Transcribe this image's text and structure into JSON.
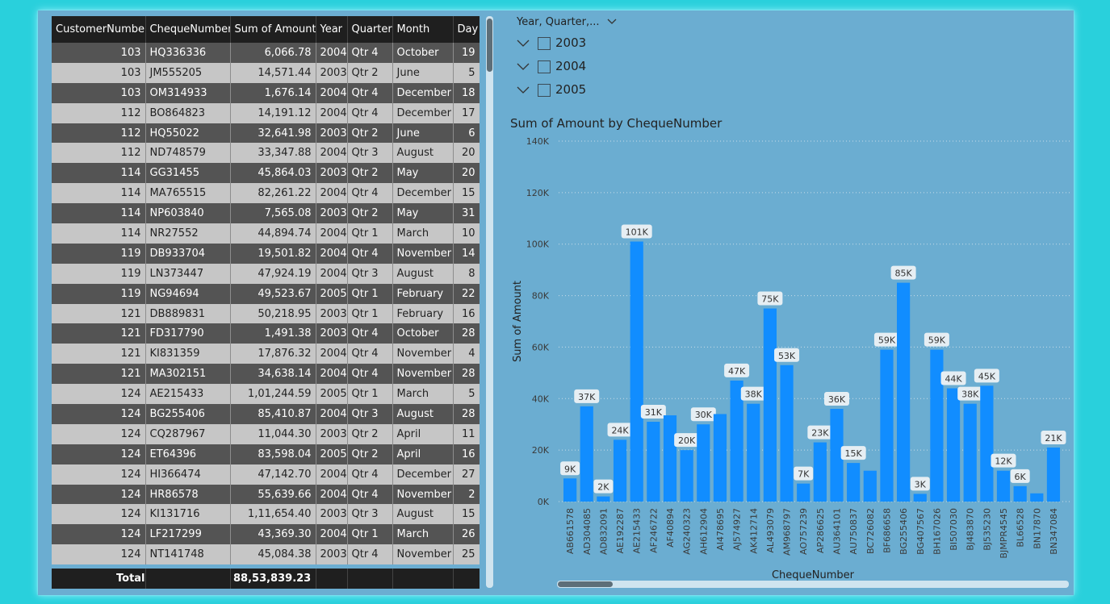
{
  "table": {
    "columns": [
      "CustomerNumber",
      "ChequeNumber",
      "Sum of Amount",
      "Year",
      "Quarter",
      "Month",
      "Day"
    ],
    "rows": [
      [
        "103",
        "HQ336336",
        "6,066.78",
        "2004",
        "Qtr 4",
        "October",
        "19"
      ],
      [
        "103",
        "JM555205",
        "14,571.44",
        "2003",
        "Qtr 2",
        "June",
        "5"
      ],
      [
        "103",
        "OM314933",
        "1,676.14",
        "2004",
        "Qtr 4",
        "December",
        "18"
      ],
      [
        "112",
        "BO864823",
        "14,191.12",
        "2004",
        "Qtr 4",
        "December",
        "17"
      ],
      [
        "112",
        "HQ55022",
        "32,641.98",
        "2003",
        "Qtr 2",
        "June",
        "6"
      ],
      [
        "112",
        "ND748579",
        "33,347.88",
        "2004",
        "Qtr 3",
        "August",
        "20"
      ],
      [
        "114",
        "GG31455",
        "45,864.03",
        "2003",
        "Qtr 2",
        "May",
        "20"
      ],
      [
        "114",
        "MA765515",
        "82,261.22",
        "2004",
        "Qtr 4",
        "December",
        "15"
      ],
      [
        "114",
        "NP603840",
        "7,565.08",
        "2003",
        "Qtr 2",
        "May",
        "31"
      ],
      [
        "114",
        "NR27552",
        "44,894.74",
        "2004",
        "Qtr 1",
        "March",
        "10"
      ],
      [
        "119",
        "DB933704",
        "19,501.82",
        "2004",
        "Qtr 4",
        "November",
        "14"
      ],
      [
        "119",
        "LN373447",
        "47,924.19",
        "2004",
        "Qtr 3",
        "August",
        "8"
      ],
      [
        "119",
        "NG94694",
        "49,523.67",
        "2005",
        "Qtr 1",
        "February",
        "22"
      ],
      [
        "121",
        "DB889831",
        "50,218.95",
        "2003",
        "Qtr 1",
        "February",
        "16"
      ],
      [
        "121",
        "FD317790",
        "1,491.38",
        "2003",
        "Qtr 4",
        "October",
        "28"
      ],
      [
        "121",
        "KI831359",
        "17,876.32",
        "2004",
        "Qtr 4",
        "November",
        "4"
      ],
      [
        "121",
        "MA302151",
        "34,638.14",
        "2004",
        "Qtr 4",
        "November",
        "28"
      ],
      [
        "124",
        "AE215433",
        "1,01,244.59",
        "2005",
        "Qtr 1",
        "March",
        "5"
      ],
      [
        "124",
        "BG255406",
        "85,410.87",
        "2004",
        "Qtr 3",
        "August",
        "28"
      ],
      [
        "124",
        "CQ287967",
        "11,044.30",
        "2003",
        "Qtr 2",
        "April",
        "11"
      ],
      [
        "124",
        "ET64396",
        "83,598.04",
        "2005",
        "Qtr 2",
        "April",
        "16"
      ],
      [
        "124",
        "HI366474",
        "47,142.70",
        "2004",
        "Qtr 4",
        "December",
        "27"
      ],
      [
        "124",
        "HR86578",
        "55,639.66",
        "2004",
        "Qtr 4",
        "November",
        "2"
      ],
      [
        "124",
        "KI131716",
        "1,11,654.40",
        "2003",
        "Qtr 3",
        "August",
        "15"
      ],
      [
        "124",
        "LF217299",
        "43,369.30",
        "2004",
        "Qtr 1",
        "March",
        "26"
      ],
      [
        "124",
        "NT141748",
        "45,084.38",
        "2003",
        "Qtr 4",
        "November",
        "25"
      ]
    ],
    "total_label": "Total",
    "total_amount": "88,53,839.23"
  },
  "slicer": {
    "title": "Year, Quarter,...",
    "items": [
      "2003",
      "2004",
      "2005"
    ]
  },
  "chart_data": {
    "type": "bar",
    "title": "Sum of Amount by ChequeNumber",
    "xlabel": "ChequeNumber",
    "ylabel": "Sum of Amount",
    "ylim": [
      0,
      140000
    ],
    "yticks": [
      "0K",
      "20K",
      "40K",
      "60K",
      "80K",
      "100K",
      "120K",
      "140K"
    ],
    "grid": true,
    "bar_color": "#118dff",
    "categories": [
      "AB661578",
      "AD304085",
      "AD832091",
      "AE192287",
      "AE215433",
      "AF246722",
      "AF40894",
      "AG240323",
      "AH612904",
      "AI478695",
      "AJ574927",
      "AK412714",
      "AL493079",
      "AM968797",
      "AO757239",
      "AP286625",
      "AU364101",
      "AU750837",
      "BC726082",
      "BF686658",
      "BG255406",
      "BG407567",
      "BH167026",
      "BI507030",
      "BJ483870",
      "BJ535230",
      "BJMPR4545",
      "BL66528",
      "BN17870",
      "BN347084"
    ],
    "values": [
      9000,
      37000,
      2000,
      24000,
      101000,
      31000,
      33500,
      20000,
      30000,
      34000,
      47000,
      38000,
      75000,
      53000,
      7000,
      23000,
      36000,
      15000,
      12000,
      59000,
      85000,
      3000,
      59000,
      44000,
      38000,
      45000,
      12000,
      6000,
      3200,
      21000
    ],
    "labels": [
      "9K",
      "37K",
      "2K",
      "24K",
      "101K",
      "31K",
      "",
      "20K",
      "30K",
      "",
      "47K",
      "38K",
      "75K",
      "53K",
      "7K",
      "23K",
      "36K",
      "15K",
      "",
      "59K",
      "85K",
      "3K",
      "59K",
      "44K",
      "38K",
      "45K",
      "12K",
      "6K",
      "",
      "21K"
    ]
  }
}
